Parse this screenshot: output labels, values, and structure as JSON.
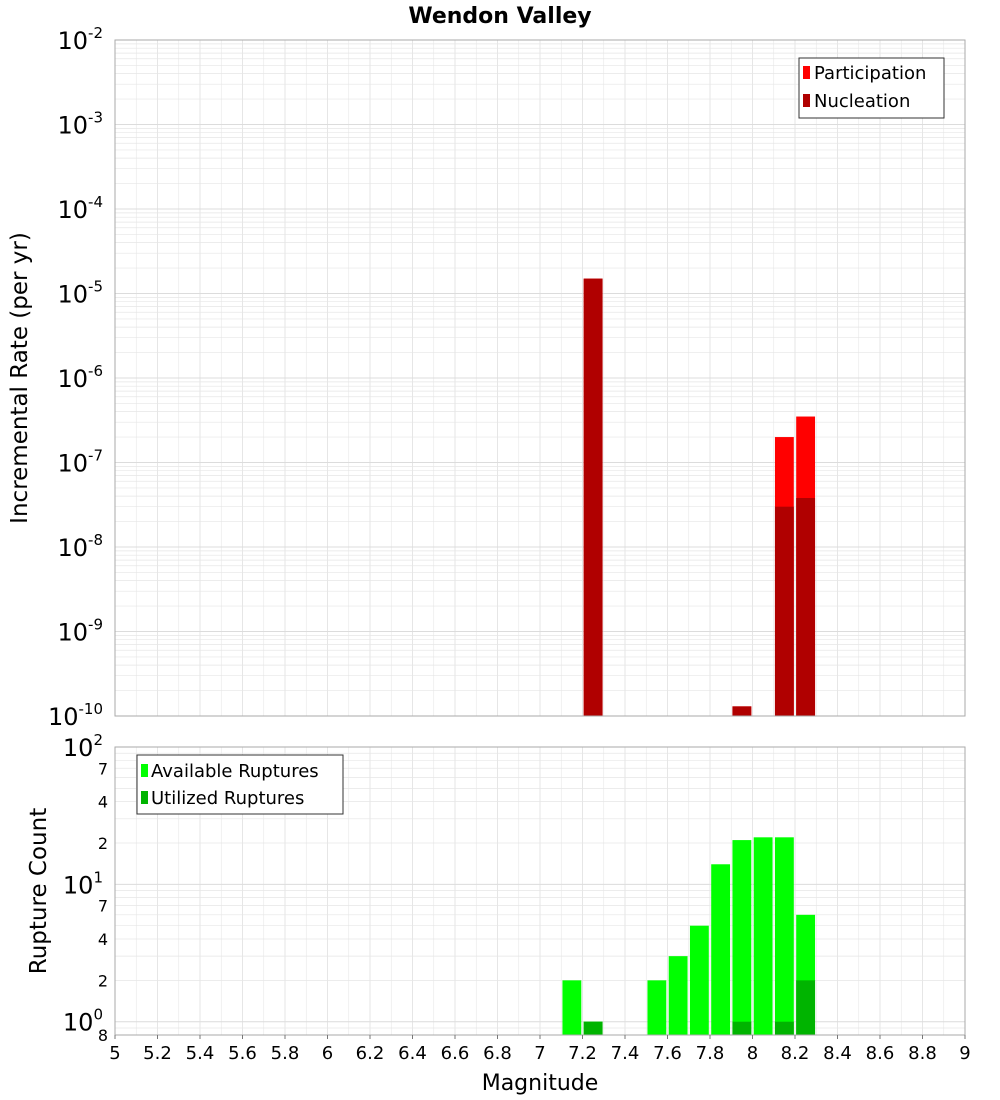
{
  "colors": {
    "participation": "#ff0000",
    "nucleation": "#b00000",
    "available": "#00ff00",
    "utilized": "#00b400",
    "grid": "#e6e6e6",
    "axis": "#aaaaaa"
  },
  "chart_data": [
    {
      "type": "bar",
      "title": "Wendon Valley",
      "ylabel": "Incremental Rate (per yr)",
      "xlabel": "",
      "yscale": "log",
      "ylim": [
        1e-10,
        0.01
      ],
      "xlim": [
        5,
        9
      ],
      "bin_width": 0.1,
      "y_ticks": [
        {
          "base": "10",
          "exp": "-2"
        },
        {
          "base": "10",
          "exp": "-3"
        },
        {
          "base": "10",
          "exp": "-4"
        },
        {
          "base": "10",
          "exp": "-5"
        },
        {
          "base": "10",
          "exp": "-6"
        },
        {
          "base": "10",
          "exp": "-7"
        },
        {
          "base": "10",
          "exp": "-8"
        },
        {
          "base": "10",
          "exp": "-9"
        },
        {
          "base": "10",
          "exp": "-10"
        }
      ],
      "legend": {
        "position": "top-right",
        "entries": [
          "Participation",
          "Nucleation"
        ]
      },
      "grid": true,
      "series": [
        {
          "name": "Participation",
          "x": [
            7.25,
            7.95,
            8.15,
            8.25
          ],
          "values": [
            1.5e-05,
            1.3e-10,
            2e-07,
            3.5e-07
          ]
        },
        {
          "name": "Nucleation",
          "x": [
            7.25,
            7.95,
            8.15,
            8.25
          ],
          "values": [
            1.5e-05,
            1.3e-10,
            3e-08,
            3.8e-08
          ]
        }
      ]
    },
    {
      "type": "bar",
      "ylabel": "Rupture Count",
      "xlabel": "Magnitude",
      "yscale": "log",
      "ylim": [
        0.8,
        100
      ],
      "xlim": [
        5,
        9
      ],
      "bin_width": 0.1,
      "x_ticks": [
        "5",
        "5.2",
        "5.4",
        "5.6",
        "5.8",
        "6",
        "6.2",
        "6.4",
        "6.6",
        "6.8",
        "7",
        "7.2",
        "7.4",
        "7.6",
        "7.8",
        "8",
        "8.2",
        "8.4",
        "8.6",
        "8.8",
        "9"
      ],
      "y_major_ticks": [
        {
          "base": "10",
          "exp": "2",
          "value": 100
        },
        {
          "base": "10",
          "exp": "1",
          "value": 10
        },
        {
          "base": "10",
          "exp": "0",
          "value": 1
        }
      ],
      "y_minor_ticks": [
        {
          "label": "7",
          "value": 70
        },
        {
          "label": "4",
          "value": 40
        },
        {
          "label": "2",
          "value": 20
        },
        {
          "label": "7",
          "value": 7
        },
        {
          "label": "4",
          "value": 4
        },
        {
          "label": "2",
          "value": 2
        },
        {
          "label": "8",
          "value": 0.8
        }
      ],
      "legend": {
        "position": "top-left",
        "entries": [
          "Available Ruptures",
          "Utilized Ruptures"
        ]
      },
      "grid": true,
      "series": [
        {
          "name": "Available Ruptures",
          "x": [
            7.15,
            7.25,
            7.55,
            7.65,
            7.75,
            7.85,
            7.95,
            8.05,
            8.15,
            8.25
          ],
          "values": [
            2,
            1,
            2,
            3,
            5,
            14,
            21,
            22,
            22,
            6
          ]
        },
        {
          "name": "Utilized Ruptures",
          "x": [
            7.25,
            7.95,
            8.15,
            8.25
          ],
          "values": [
            1,
            1,
            1,
            2
          ]
        }
      ]
    }
  ]
}
